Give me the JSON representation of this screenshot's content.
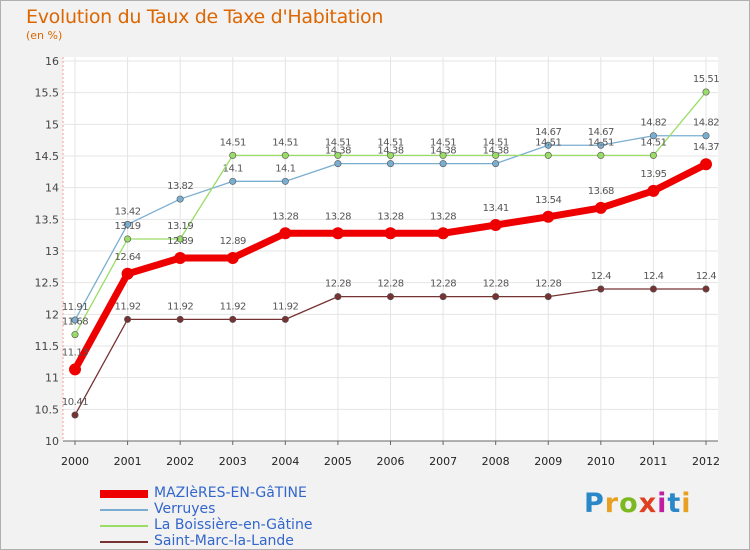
{
  "title": "Evolution du Taux de Taxe d'Habitation",
  "unit": "(en %)",
  "logo": {
    "text": "Proxiti",
    "colors": [
      "#2a88c8",
      "#e8a020",
      "#7cb820",
      "#e04020",
      "#c020a0",
      "#2a88c8",
      "#e8a020"
    ]
  },
  "chart_data": {
    "type": "line",
    "x": [
      "2000",
      "2001",
      "2002",
      "2003",
      "2004",
      "2005",
      "2006",
      "2007",
      "2008",
      "2009",
      "2010",
      "2011",
      "2012"
    ],
    "ylim": [
      10,
      16
    ],
    "yticks": [
      "10",
      "10.5",
      "11",
      "11.5",
      "12",
      "12.5",
      "13",
      "13.5",
      "14",
      "14.5",
      "15",
      "15.5",
      "16"
    ],
    "grid": true,
    "legend": "bottom-left",
    "series": [
      {
        "name": "Verruyes",
        "color": "#7aaed0",
        "values": [
          11.91,
          13.42,
          13.82,
          14.1,
          14.1,
          14.38,
          14.38,
          14.38,
          14.38,
          14.67,
          14.67,
          14.82,
          14.82
        ],
        "labels": [
          "11.91",
          "13.42",
          "13.82",
          "14.1",
          "14.1",
          "14.38",
          "14.38",
          "14.38",
          "14.38",
          "14.67",
          "14.67",
          "14.82",
          "14.82"
        ]
      },
      {
        "name": "La Boissière-en-Gâtine",
        "color": "#99dd66",
        "values": [
          11.68,
          13.19,
          13.19,
          14.51,
          14.51,
          14.51,
          14.51,
          14.51,
          14.51,
          14.51,
          14.51,
          14.51,
          15.51
        ],
        "labels": [
          "11.68",
          "13.19",
          "13.19",
          "14.51",
          "14.51",
          "14.51",
          "14.51",
          "14.51",
          "14.51",
          "14.51",
          "14.51",
          "14.51",
          "15.51"
        ]
      },
      {
        "name": "Saint-Marc-la-Lande",
        "color": "#773333",
        "values": [
          10.41,
          11.92,
          11.92,
          11.92,
          11.92,
          12.28,
          12.28,
          12.28,
          12.28,
          12.28,
          12.4,
          12.4,
          12.4
        ],
        "labels": [
          "10.41",
          "11.92",
          "11.92",
          "11.92",
          "11.92",
          "12.28",
          "12.28",
          "12.28",
          "12.28",
          "12.28",
          "12.4",
          "12.4",
          "12.4"
        ]
      },
      {
        "name": "MAZIèRES-EN-GâTINE",
        "color": "#ee0000",
        "values": [
          11.13,
          12.64,
          12.89,
          12.89,
          13.28,
          13.28,
          13.28,
          13.28,
          13.41,
          13.54,
          13.68,
          13.95,
          14.37
        ],
        "labels": [
          "11.13",
          "12.64",
          "12.89",
          "12.89",
          "13.28",
          "13.28",
          "13.28",
          "13.28",
          "13.41",
          "13.54",
          "13.68",
          "13.95",
          "14.37"
        ]
      }
    ]
  }
}
